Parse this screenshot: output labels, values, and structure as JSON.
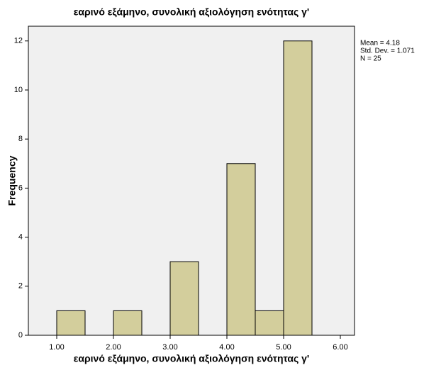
{
  "chart_data": {
    "type": "histogram",
    "title": "εαρινό εξάμηνο, συνολική αξιολόγηση ενότητας γ'",
    "x_label": "εαρινό εξάμηνο, συνολική αξιολόγηση ενότητας γ'",
    "y_label": "Frequency",
    "bins": [
      1.0,
      1.5,
      2.0,
      2.5,
      3.0,
      3.5,
      4.0,
      4.5,
      5.0,
      5.5
    ],
    "values": [
      1,
      0,
      1,
      0,
      3,
      0,
      7,
      1,
      12
    ],
    "color": "#d3ce9c",
    "xlim": [
      0.5,
      6.25
    ],
    "xticks": [
      {
        "value": 1,
        "label": "1.00"
      },
      {
        "value": 2,
        "label": "2.00"
      },
      {
        "value": 3,
        "label": "3.00"
      },
      {
        "value": 4,
        "label": "4.00"
      },
      {
        "value": 5,
        "label": "5.00"
      },
      {
        "value": 6,
        "label": "6.00"
      }
    ],
    "ylim": [
      0,
      12.6
    ],
    "yticks": [
      0,
      2,
      4,
      6,
      8,
      10,
      12
    ],
    "stats": [
      "Mean = 4.18",
      "Std. Dev. = 1.071",
      "N = 25"
    ]
  }
}
